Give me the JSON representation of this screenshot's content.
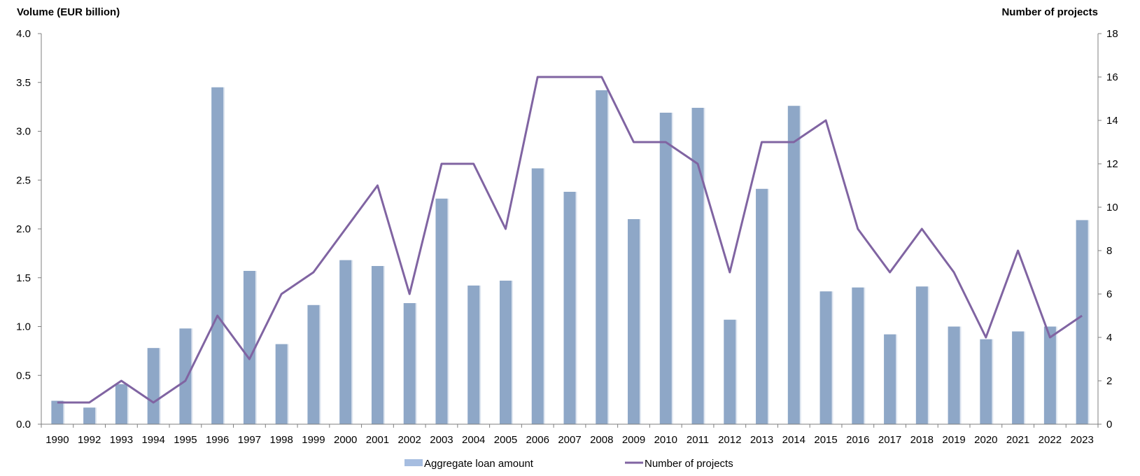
{
  "chart_data": {
    "type": "bar",
    "categories": [
      "1990",
      "1992",
      "1993",
      "1994",
      "1995",
      "1996",
      "1997",
      "1998",
      "1999",
      "2000",
      "2001",
      "2002",
      "2003",
      "2004",
      "2005",
      "2006",
      "2007",
      "2008",
      "2009",
      "2010",
      "2011",
      "2012",
      "2013",
      "2014",
      "2015",
      "2016",
      "2017",
      "2018",
      "2019",
      "2020",
      "2021",
      "2022",
      "2023"
    ],
    "series": [
      {
        "name": "Aggregate loan amount",
        "type": "bar",
        "axis": "left",
        "color": "#8ea7c7",
        "values": [
          0.24,
          0.17,
          0.41,
          0.78,
          0.98,
          3.45,
          1.57,
          0.82,
          1.22,
          1.68,
          1.62,
          1.24,
          2.31,
          1.42,
          1.47,
          2.62,
          2.38,
          3.42,
          2.1,
          3.19,
          3.24,
          1.07,
          2.41,
          3.26,
          1.36,
          1.4,
          0.92,
          1.41,
          1.0,
          0.87,
          0.95,
          1.0,
          2.09
        ]
      },
      {
        "name": "Number of projects",
        "type": "line",
        "axis": "right",
        "color": "#8064a2",
        "values": [
          1,
          1,
          2,
          1,
          2,
          5,
          3,
          6,
          7,
          9,
          11,
          6,
          12,
          12,
          9,
          16,
          16,
          16,
          13,
          13,
          12,
          7,
          13,
          13,
          14,
          9,
          7,
          9,
          7,
          4,
          8,
          4,
          5
        ]
      }
    ],
    "ylabel": "Volume (EUR billion)",
    "y2label": "Number of projects",
    "ylim": [
      0,
      4.0
    ],
    "y_ticks": [
      "0.0",
      "0.5",
      "1.0",
      "1.5",
      "2.0",
      "2.5",
      "3.0",
      "3.5",
      "4.0"
    ],
    "y2lim": [
      0,
      18
    ],
    "y2_ticks": [
      "0",
      "2",
      "4",
      "6",
      "8",
      "10",
      "12",
      "14",
      "16",
      "18"
    ],
    "grid": false,
    "legend": "bottom-center"
  }
}
